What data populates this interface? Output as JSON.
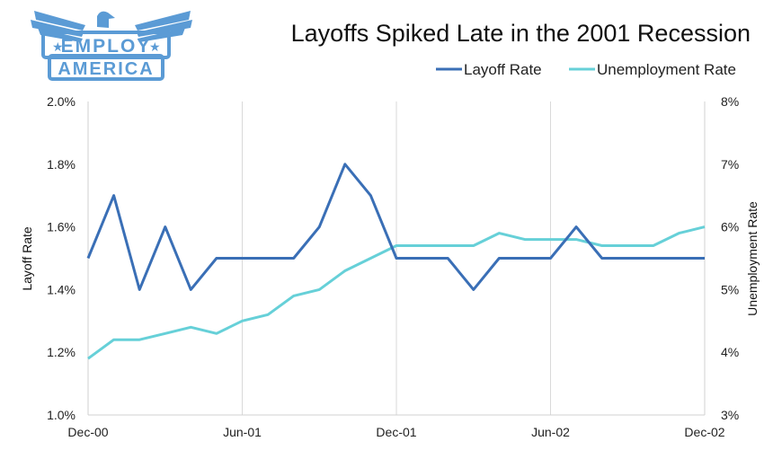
{
  "logo": {
    "top_text": "EMPLOY",
    "bottom_text": "AMERICA",
    "color": "#5b9bd5"
  },
  "chart_data": {
    "type": "line",
    "title": "Layoffs Spiked Late in the 2001 Recession",
    "x": [
      "Dec-00",
      "Jan-01",
      "Feb-01",
      "Mar-01",
      "Apr-01",
      "May-01",
      "Jun-01",
      "Jul-01",
      "Aug-01",
      "Sep-01",
      "Oct-01",
      "Nov-01",
      "Dec-01",
      "Jan-02",
      "Feb-02",
      "Mar-02",
      "Apr-02",
      "May-02",
      "Jun-02",
      "Jul-02",
      "Aug-02",
      "Sep-02",
      "Oct-02",
      "Nov-02",
      "Dec-02"
    ],
    "x_tick_labels": [
      "Dec-00",
      "Jun-01",
      "Dec-01",
      "Jun-02",
      "Dec-02"
    ],
    "series": [
      {
        "name": "Layoff Rate",
        "axis": "left",
        "color": "#3a6fb6",
        "values": [
          1.5,
          1.7,
          1.4,
          1.6,
          1.4,
          1.5,
          1.5,
          1.5,
          1.5,
          1.6,
          1.8,
          1.7,
          1.5,
          1.5,
          1.5,
          1.4,
          1.5,
          1.5,
          1.5,
          1.6,
          1.5,
          1.5,
          1.5,
          1.5,
          1.5
        ]
      },
      {
        "name": "Unemployment Rate",
        "axis": "right",
        "color": "#66d0d8",
        "values": [
          3.9,
          4.2,
          4.2,
          4.3,
          4.4,
          4.3,
          4.5,
          4.6,
          4.9,
          5.0,
          5.3,
          5.5,
          5.7,
          5.7,
          5.7,
          5.7,
          5.9,
          5.8,
          5.8,
          5.8,
          5.7,
          5.7,
          5.7,
          5.9,
          6.0
        ]
      }
    ],
    "ylabel": "Layoff Rate",
    "ylabel_right": "Unemployment Rate",
    "ylim": [
      1.0,
      2.0
    ],
    "ylim_right": [
      3,
      8
    ],
    "y_ticks": [
      "1.0%",
      "1.2%",
      "1.4%",
      "1.6%",
      "1.8%",
      "2.0%"
    ],
    "y_ticks_right": [
      "3%",
      "4%",
      "5%",
      "6%",
      "7%",
      "8%"
    ],
    "legend_position": "top-right",
    "grid": "vertical"
  }
}
